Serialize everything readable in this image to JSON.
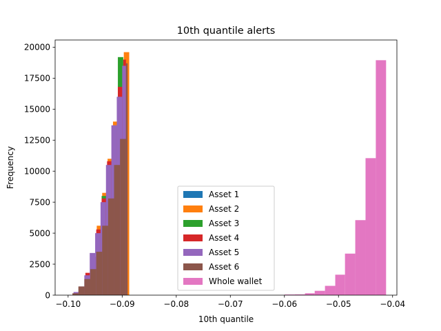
{
  "chart_data": {
    "type": "histogram",
    "title": "10th quantile alerts",
    "xlabel": "10th quantile",
    "ylabel": "Frequency",
    "xlim": [
      -0.1024,
      -0.0392
    ],
    "ylim": [
      0,
      20580
    ],
    "x_ticks": [
      -0.1,
      -0.09,
      -0.08,
      -0.07,
      -0.06,
      -0.05,
      -0.04
    ],
    "x_tick_labels": [
      "−0.10",
      "−0.09",
      "−0.08",
      "−0.07",
      "−0.06",
      "−0.05",
      "−0.04"
    ],
    "y_ticks": [
      0,
      2500,
      5000,
      7500,
      10000,
      12500,
      15000,
      17500,
      20000
    ],
    "y_tick_labels": [
      "0",
      "2500",
      "5000",
      "7500",
      "10000",
      "12500",
      "15000",
      "17500",
      "20000"
    ],
    "grid": false,
    "legend_position": "lower center",
    "series": [
      {
        "name": "Asset 1",
        "color": "#1f77b4",
        "bins": [
          [
            -0.0988,
            -0.0976,
            150
          ],
          [
            -0.0976,
            -0.0964,
            500
          ],
          [
            -0.0964,
            -0.0952,
            1200
          ],
          [
            -0.0952,
            -0.094,
            2900
          ],
          [
            -0.094,
            -0.0928,
            5200
          ],
          [
            -0.0928,
            -0.0916,
            8500
          ],
          [
            -0.0916,
            -0.0904,
            13000
          ],
          [
            -0.0904,
            -0.0892,
            17800
          ]
        ]
      },
      {
        "name": "Asset 2",
        "color": "#ff7f0e",
        "bins": [
          [
            -0.0987,
            -0.0977,
            200
          ],
          [
            -0.0977,
            -0.0967,
            550
          ],
          [
            -0.0967,
            -0.0957,
            1300
          ],
          [
            -0.0957,
            -0.0947,
            3000
          ],
          [
            -0.0947,
            -0.0937,
            5600
          ],
          [
            -0.0937,
            -0.0927,
            8250
          ],
          [
            -0.0927,
            -0.0917,
            11000
          ],
          [
            -0.0917,
            -0.0907,
            14000
          ],
          [
            -0.0907,
            -0.0897,
            17000
          ],
          [
            -0.0897,
            -0.0887,
            19600
          ]
        ]
      },
      {
        "name": "Asset 3",
        "color": "#2ca02c",
        "bins": [
          [
            -0.0988,
            -0.0978,
            180
          ],
          [
            -0.0978,
            -0.0968,
            500
          ],
          [
            -0.0968,
            -0.0958,
            1600
          ],
          [
            -0.0958,
            -0.0948,
            3000
          ],
          [
            -0.0948,
            -0.0938,
            5000
          ],
          [
            -0.0938,
            -0.0928,
            8000
          ],
          [
            -0.0928,
            -0.0918,
            10500
          ],
          [
            -0.0918,
            -0.0908,
            13500
          ],
          [
            -0.0908,
            -0.0898,
            19200
          ]
        ]
      },
      {
        "name": "Asset 4",
        "color": "#d62728",
        "bins": [
          [
            -0.0988,
            -0.0978,
            200
          ],
          [
            -0.0978,
            -0.0968,
            600
          ],
          [
            -0.0968,
            -0.0958,
            1800
          ],
          [
            -0.0958,
            -0.0948,
            3100
          ],
          [
            -0.0948,
            -0.0938,
            5300
          ],
          [
            -0.0938,
            -0.0928,
            7800
          ],
          [
            -0.0928,
            -0.0918,
            10800
          ],
          [
            -0.0918,
            -0.0908,
            13200
          ],
          [
            -0.0908,
            -0.0898,
            16800
          ],
          [
            -0.0898,
            -0.0893,
            19000
          ]
        ]
      },
      {
        "name": "Asset 5",
        "color": "#9467bd",
        "bins": [
          [
            -0.099,
            -0.098,
            250
          ],
          [
            -0.098,
            -0.097,
            700
          ],
          [
            -0.097,
            -0.096,
            1600
          ],
          [
            -0.096,
            -0.095,
            3400
          ],
          [
            -0.095,
            -0.094,
            5000
          ],
          [
            -0.094,
            -0.093,
            7500
          ],
          [
            -0.093,
            -0.092,
            10500
          ],
          [
            -0.092,
            -0.091,
            13700
          ],
          [
            -0.091,
            -0.09,
            16000
          ],
          [
            -0.09,
            -0.0893,
            18500
          ]
        ]
      },
      {
        "name": "Asset 6",
        "color": "#8c564b",
        "bins": [
          [
            -0.0992,
            -0.0981,
            150
          ],
          [
            -0.0981,
            -0.097,
            700
          ],
          [
            -0.097,
            -0.0959,
            1300
          ],
          [
            -0.0959,
            -0.0948,
            2100
          ],
          [
            -0.0948,
            -0.0937,
            3500
          ],
          [
            -0.0937,
            -0.0926,
            5600
          ],
          [
            -0.0926,
            -0.0915,
            7800
          ],
          [
            -0.0915,
            -0.0904,
            10500
          ],
          [
            -0.0904,
            -0.0893,
            12600
          ],
          [
            -0.0893,
            -0.089,
            18700
          ]
        ]
      },
      {
        "name": "Whole wallet",
        "color": "#e377c2",
        "bins": [
          [
            -0.06,
            -0.0581,
            50
          ],
          [
            -0.0581,
            -0.0562,
            60
          ],
          [
            -0.0562,
            -0.0544,
            150
          ],
          [
            -0.0544,
            -0.0525,
            350
          ],
          [
            -0.0525,
            -0.0506,
            750
          ],
          [
            -0.0506,
            -0.0488,
            1650
          ],
          [
            -0.0488,
            -0.0469,
            3350
          ],
          [
            -0.0469,
            -0.045,
            6050
          ],
          [
            -0.045,
            -0.0431,
            11050
          ],
          [
            -0.0431,
            -0.0412,
            18950
          ]
        ]
      }
    ]
  }
}
